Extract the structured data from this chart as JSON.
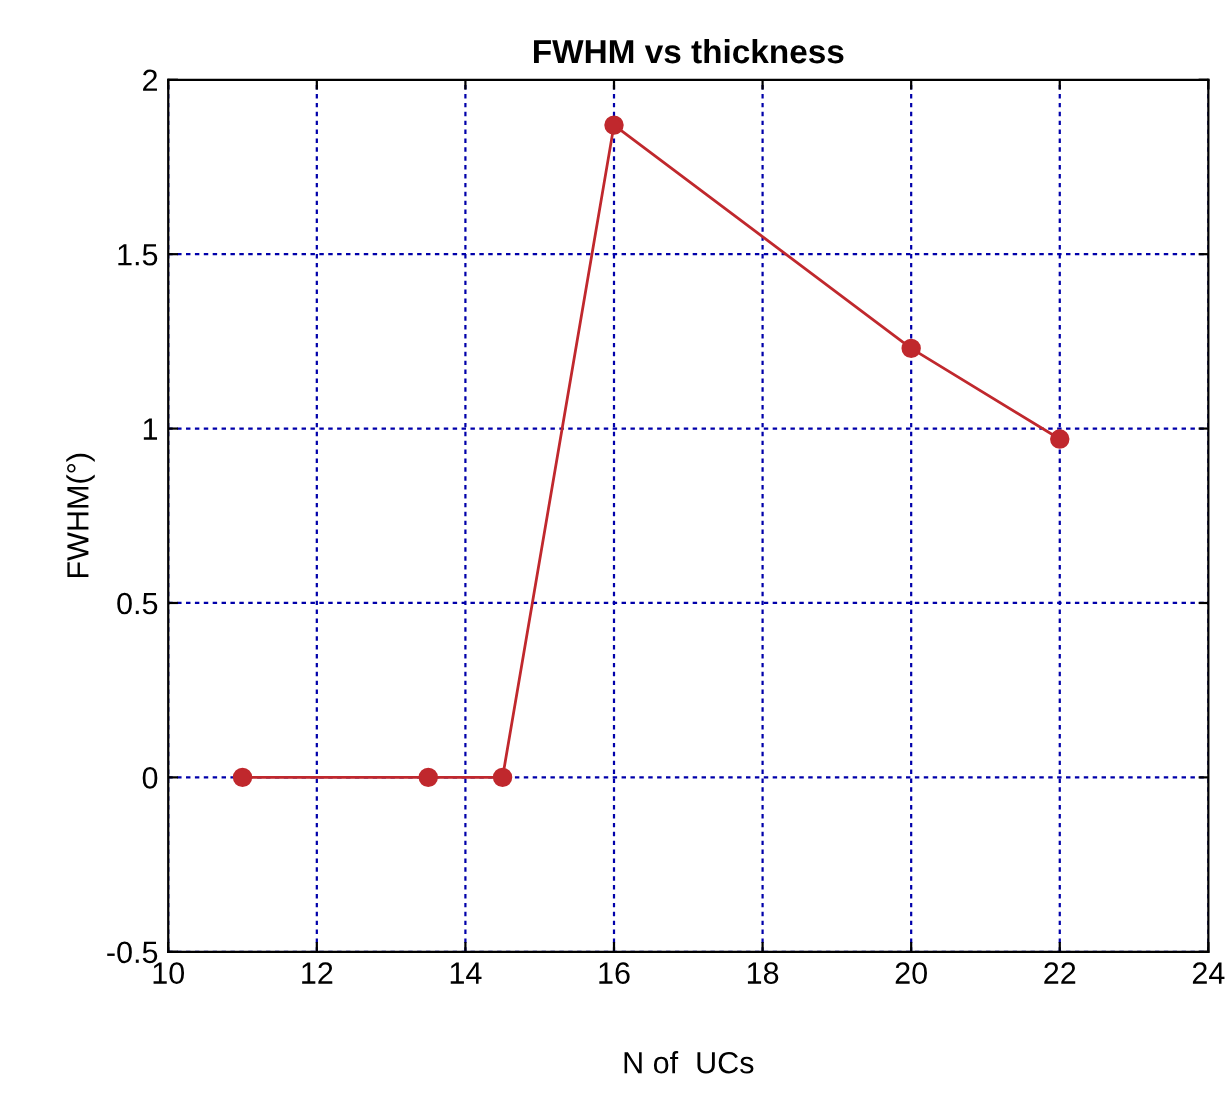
{
  "chart_data": {
    "type": "line",
    "title": "FWHM vs thickness",
    "xlabel": "N of  UCs",
    "ylabel": "FWHM(°)",
    "x": [
      11,
      13.5,
      14.5,
      16,
      20,
      22
    ],
    "series": [
      {
        "color": "#c0282d",
        "values": [
          0,
          0,
          0,
          1.87,
          1.23,
          0.97
        ]
      }
    ],
    "xlim": [
      10,
      24
    ],
    "xticks": [
      10,
      12,
      14,
      16,
      18,
      20,
      22,
      24
    ],
    "ylim": [
      -0.5,
      2
    ],
    "yticks": [
      {
        "value": -0.5,
        "label": "-0.5"
      },
      0,
      0.5,
      1,
      1.5,
      2
    ],
    "grid": true,
    "marker": "circle",
    "line_style": "solid",
    "legend": false
  }
}
